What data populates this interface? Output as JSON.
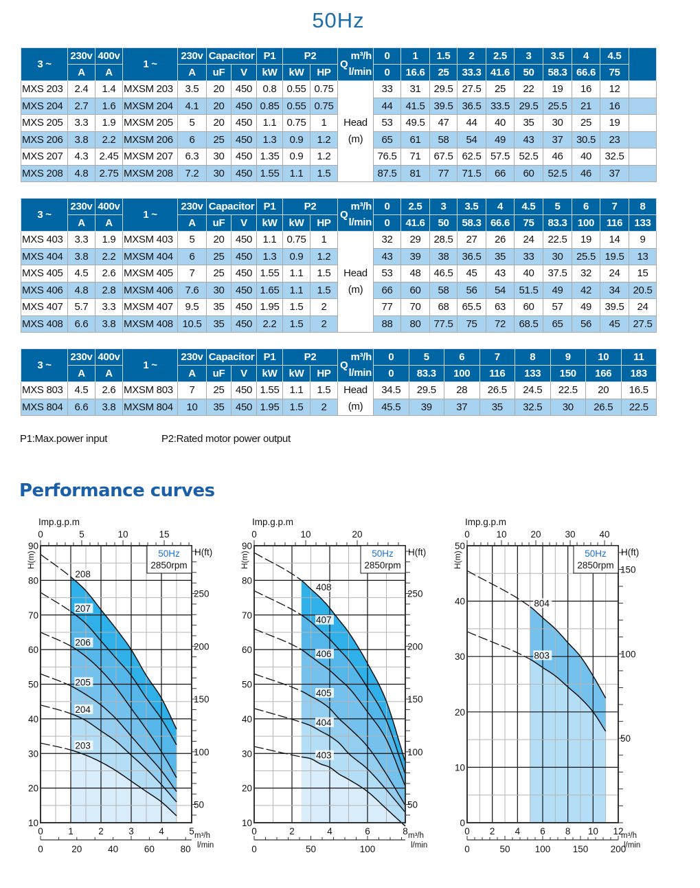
{
  "title": "50Hz",
  "table_header": {
    "three_phase": "3 ~",
    "v230": "230v",
    "v400": "400v",
    "single_phase": "1 ~",
    "v230_single": "230v",
    "capacitor": "Capacitor",
    "p1": "P1",
    "p2": "P2",
    "q": "Q",
    "unit_m3h": "m³/h",
    "unit_lmin": "l/min",
    "amp": "A",
    "uf": "uF",
    "volt": "V",
    "kw": "kW",
    "hp": "HP",
    "head_label": "Head",
    "head_unit": "(m)"
  },
  "tables": [
    {
      "flow_m3h": [
        "0",
        "1",
        "1.5",
        "2",
        "2.5",
        "3",
        "3.5",
        "4",
        "4.5"
      ],
      "flow_lmin": [
        "0",
        "16.6",
        "25",
        "33.3",
        "41.6",
        "50",
        "58.3",
        "66.6",
        "75"
      ],
      "extra_blank_column": true,
      "rows": [
        {
          "m3": "MXS 203",
          "a230": "2.4",
          "a400": "1.4",
          "m1": "MXSM 203",
          "a1": "3.5",
          "uf": "20",
          "v": "450",
          "p1": "0.8",
          "p2kw": "0.55",
          "p2hp": "0.75",
          "head": [
            "33",
            "31",
            "29.5",
            "27.5",
            "25",
            "22",
            "19",
            "16",
            "12"
          ]
        },
        {
          "m3": "MXS 204",
          "a230": "2.7",
          "a400": "1.6",
          "m1": "MXSM 204",
          "a1": "4.1",
          "uf": "20",
          "v": "450",
          "p1": "0.85",
          "p2kw": "0.55",
          "p2hp": "0.75",
          "head": [
            "44",
            "41.5",
            "39.5",
            "36.5",
            "33.5",
            "29.5",
            "25.5",
            "21",
            "16"
          ]
        },
        {
          "m3": "MXS 205",
          "a230": "3.3",
          "a400": "1.9",
          "m1": "MXSM 205",
          "a1": "5",
          "uf": "20",
          "v": "450",
          "p1": "1.1",
          "p2kw": "0.75",
          "p2hp": "1",
          "head": [
            "53",
            "49.5",
            "47",
            "44",
            "40",
            "35",
            "30",
            "25",
            "19"
          ]
        },
        {
          "m3": "MXS 206",
          "a230": "3.8",
          "a400": "2.2",
          "m1": "MXSM 206",
          "a1": "6",
          "uf": "25",
          "v": "450",
          "p1": "1.3",
          "p2kw": "0.9",
          "p2hp": "1.2",
          "head": [
            "65",
            "61",
            "58",
            "54",
            "49",
            "43",
            "37",
            "30.5",
            "23"
          ]
        },
        {
          "m3": "MXS 207",
          "a230": "4.3",
          "a400": "2.45",
          "m1": "MXSM 207",
          "a1": "6.3",
          "uf": "30",
          "v": "450",
          "p1": "1.35",
          "p2kw": "0.9",
          "p2hp": "1.2",
          "head": [
            "76.5",
            "71",
            "67.5",
            "62.5",
            "57.5",
            "52.5",
            "46",
            "40",
            "32.5"
          ]
        },
        {
          "m3": "MXS 208",
          "a230": "4.8",
          "a400": "2.75",
          "m1": "MXSM 208",
          "a1": "7.2",
          "uf": "30",
          "v": "450",
          "p1": "1.55",
          "p2kw": "1.1",
          "p2hp": "1.5",
          "head": [
            "87.5",
            "81",
            "77",
            "71.5",
            "66",
            "60",
            "52.5",
            "46",
            "37"
          ]
        }
      ]
    },
    {
      "flow_m3h": [
        "0",
        "2.5",
        "3",
        "3.5",
        "4",
        "4.5",
        "5",
        "6",
        "7",
        "8"
      ],
      "flow_lmin": [
        "0",
        "41.6",
        "50",
        "58.3",
        "66.6",
        "75",
        "83.3",
        "100",
        "116",
        "133"
      ],
      "extra_blank_column": false,
      "rows": [
        {
          "m3": "MXS 403",
          "a230": "3.3",
          "a400": "1.9",
          "m1": "MXSM 403",
          "a1": "5",
          "uf": "20",
          "v": "450",
          "p1": "1.1",
          "p2kw": "0.75",
          "p2hp": "1",
          "head": [
            "32",
            "29",
            "28.5",
            "27",
            "26",
            "24",
            "22.5",
            "19",
            "14",
            "9"
          ]
        },
        {
          "m3": "MXS 404",
          "a230": "3.8",
          "a400": "2.2",
          "m1": "MXSM 404",
          "a1": "6",
          "uf": "25",
          "v": "450",
          "p1": "1.3",
          "p2kw": "0.9",
          "p2hp": "1.2",
          "head": [
            "43",
            "39",
            "38",
            "36.5",
            "35",
            "33",
            "30",
            "25.5",
            "19.5",
            "13"
          ]
        },
        {
          "m3": "MXS 405",
          "a230": "4.5",
          "a400": "2.6",
          "m1": "MXSM 405",
          "a1": "7",
          "uf": "25",
          "v": "450",
          "p1": "1.55",
          "p2kw": "1.1",
          "p2hp": "1.5",
          "head": [
            "53",
            "48",
            "46.5",
            "45",
            "43",
            "40",
            "37.5",
            "32",
            "24",
            "15"
          ]
        },
        {
          "m3": "MXS 406",
          "a230": "4.8",
          "a400": "2.8",
          "m1": "MXSM 406",
          "a1": "7.6",
          "uf": "30",
          "v": "450",
          "p1": "1.65",
          "p2kw": "1.1",
          "p2hp": "1.5",
          "head": [
            "66",
            "60",
            "58",
            "56",
            "54",
            "51.5",
            "49",
            "42",
            "34",
            "20.5"
          ]
        },
        {
          "m3": "MXS 407",
          "a230": "5.7",
          "a400": "3.3",
          "m1": "MXSM 407",
          "a1": "9.5",
          "uf": "35",
          "v": "450",
          "p1": "1.95",
          "p2kw": "1.5",
          "p2hp": "2",
          "head": [
            "77",
            "70",
            "68",
            "65.5",
            "63",
            "60",
            "57",
            "49",
            "39.5",
            "24"
          ]
        },
        {
          "m3": "MXS 408",
          "a230": "6.6",
          "a400": "3.8",
          "m1": "MXSM 408",
          "a1": "10.5",
          "uf": "35",
          "v": "450",
          "p1": "2.2",
          "p2kw": "1.5",
          "p2hp": "2",
          "head": [
            "88",
            "80",
            "77.5",
            "75",
            "72",
            "68.5",
            "65",
            "56",
            "45",
            "27.5"
          ]
        }
      ]
    },
    {
      "flow_m3h": [
        "0",
        "5",
        "6",
        "7",
        "8",
        "9",
        "10",
        "11"
      ],
      "flow_lmin": [
        "0",
        "83.3",
        "100",
        "116",
        "133",
        "150",
        "166",
        "183"
      ],
      "extra_blank_column": false,
      "rows": [
        {
          "m3": "MXS 803",
          "a230": "4.5",
          "a400": "2.6",
          "m1": "MXSM 803",
          "a1": "7",
          "uf": "25",
          "v": "450",
          "p1": "1.55",
          "p2kw": "1.1",
          "p2hp": "1.5",
          "head": [
            "34.5",
            "29.5",
            "28",
            "26.5",
            "24.5",
            "22.5",
            "20",
            "16.5"
          ]
        },
        {
          "m3": "MXS 804",
          "a230": "6.6",
          "a400": "3.8",
          "m1": "MXSM 804",
          "a1": "10",
          "uf": "35",
          "v": "450",
          "p1": "1.95",
          "p2kw": "1.5",
          "p2hp": "2",
          "head": [
            "45.5",
            "39",
            "37",
            "35",
            "32.5",
            "30",
            "26.5",
            "22.5"
          ]
        }
      ]
    }
  ],
  "notes": {
    "p1": "P1:Max.power input",
    "p2": "P2:Rated motor power output"
  },
  "section_title": "Performance curves",
  "colors": {
    "header_bg": "#0066a3",
    "row_alt": "#a8d3f0",
    "title": "#1d6ea8",
    "legend_hz": "#1a6fd0",
    "bands": [
      "#d9ecfa",
      "#b4ddf6",
      "#93cef1",
      "#74c1ed",
      "#55b6ea",
      "#2fb0e8"
    ]
  },
  "chart_data": [
    {
      "type": "line",
      "title": "50Hz",
      "subtitle": "2850rpm",
      "xlabel": "m³/h",
      "xlabel2": "l/min",
      "x2label_top": "Imp.g.p.m",
      "ylabel": "H(m)",
      "ylabel_right": "H(ft)",
      "xlim": [
        0,
        5
      ],
      "ylim": [
        10,
        90
      ],
      "operating_range_m3h": [
        1,
        4.5
      ],
      "grid": true,
      "legend": "top-right",
      "x_ticks": [
        "0",
        "1",
        "2",
        "3",
        "4",
        "5"
      ],
      "y_ticks": [
        "10",
        "20",
        "30",
        "40",
        "50",
        "60",
        "70",
        "80",
        "90"
      ],
      "top_ticks": [
        "0",
        "5",
        "10",
        "15"
      ],
      "bottom2_ticks": [
        "0",
        "20",
        "40",
        "60",
        "80"
      ],
      "right_ticks": [
        "50",
        "100",
        "150",
        "200",
        "250"
      ],
      "x": [
        0,
        1,
        1.5,
        2,
        2.5,
        3,
        3.5,
        4,
        4.5
      ],
      "series": [
        {
          "name": "203",
          "values": [
            33,
            31,
            29.5,
            27.5,
            25,
            22,
            19,
            16,
            12
          ]
        },
        {
          "name": "204",
          "values": [
            44,
            41.5,
            39.5,
            36.5,
            33.5,
            29.5,
            25.5,
            21,
            16
          ]
        },
        {
          "name": "205",
          "values": [
            53,
            49.5,
            47,
            44,
            40,
            35,
            30,
            25,
            19
          ]
        },
        {
          "name": "206",
          "values": [
            65,
            61,
            58,
            54,
            49,
            43,
            37,
            30.5,
            23
          ]
        },
        {
          "name": "207",
          "values": [
            76.5,
            71,
            67.5,
            62.5,
            57.5,
            52.5,
            46,
            40,
            32.5
          ]
        },
        {
          "name": "208",
          "values": [
            87.5,
            81,
            77,
            71.5,
            66,
            60,
            52.5,
            46,
            37
          ]
        }
      ]
    },
    {
      "type": "line",
      "title": "50Hz",
      "subtitle": "2850rpm",
      "xlabel": "m³/h",
      "xlabel2": "l/min",
      "x2label_top": "Imp.g.p.m",
      "ylabel": "H(m)",
      "ylabel_right": "H(ft)",
      "xlim": [
        0,
        8
      ],
      "ylim": [
        10,
        90
      ],
      "operating_range_m3h": [
        2.5,
        8
      ],
      "grid": true,
      "legend": "top-right",
      "x_ticks": [
        "0",
        "2",
        "4",
        "6",
        "8"
      ],
      "y_ticks": [
        "10",
        "20",
        "30",
        "40",
        "50",
        "60",
        "70",
        "80",
        "90"
      ],
      "top_ticks": [
        "0",
        "10",
        "20"
      ],
      "bottom2_ticks": [
        "0",
        "50",
        "100"
      ],
      "right_ticks": [
        "50",
        "100",
        "150",
        "200",
        "250"
      ],
      "x": [
        0,
        2.5,
        3,
        3.5,
        4,
        4.5,
        5,
        6,
        7,
        8
      ],
      "series": [
        {
          "name": "403",
          "values": [
            32,
            29,
            28.5,
            27,
            26,
            24,
            22.5,
            19,
            14,
            9
          ]
        },
        {
          "name": "404",
          "values": [
            43,
            39,
            38,
            36.5,
            35,
            33,
            30,
            25.5,
            19.5,
            13
          ]
        },
        {
          "name": "405",
          "values": [
            53,
            48,
            46.5,
            45,
            43,
            40,
            37.5,
            32,
            24,
            15
          ]
        },
        {
          "name": "406",
          "values": [
            66,
            60,
            58,
            56,
            54,
            51.5,
            49,
            42,
            34,
            20.5
          ]
        },
        {
          "name": "407",
          "values": [
            77,
            70,
            68,
            65.5,
            63,
            60,
            57,
            49,
            39.5,
            24
          ]
        },
        {
          "name": "408",
          "values": [
            88,
            80,
            77.5,
            75,
            72,
            68.5,
            65,
            56,
            45,
            27.5
          ]
        }
      ]
    },
    {
      "type": "line",
      "title": "50Hz",
      "subtitle": "2850rpm",
      "xlabel": "m³/h",
      "xlabel2": "l/min",
      "x2label_top": "Imp.g.p.m",
      "ylabel": "H(m)",
      "ylabel_right": "H(ft)",
      "xlim": [
        0,
        12
      ],
      "ylim": [
        0,
        50
      ],
      "operating_range_m3h": [
        5,
        11
      ],
      "grid": true,
      "legend": "top-right",
      "x_ticks": [
        "0",
        "2",
        "4",
        "6",
        "8",
        "10",
        "12"
      ],
      "y_ticks": [
        "0",
        "10",
        "20",
        "30",
        "40",
        "50"
      ],
      "top_ticks": [
        "0",
        "10",
        "20",
        "30",
        "40"
      ],
      "bottom2_ticks": [
        "0",
        "50",
        "100",
        "150",
        "200"
      ],
      "right_ticks": [
        "50",
        "100",
        "150"
      ],
      "x": [
        0,
        5,
        6,
        7,
        8,
        9,
        10,
        11
      ],
      "series": [
        {
          "name": "803",
          "values": [
            34.5,
            29.5,
            28,
            26.5,
            24.5,
            22.5,
            20,
            16.5
          ]
        },
        {
          "name": "804",
          "values": [
            45.5,
            39,
            37,
            35,
            32.5,
            30,
            26.5,
            22.5
          ]
        }
      ]
    }
  ]
}
